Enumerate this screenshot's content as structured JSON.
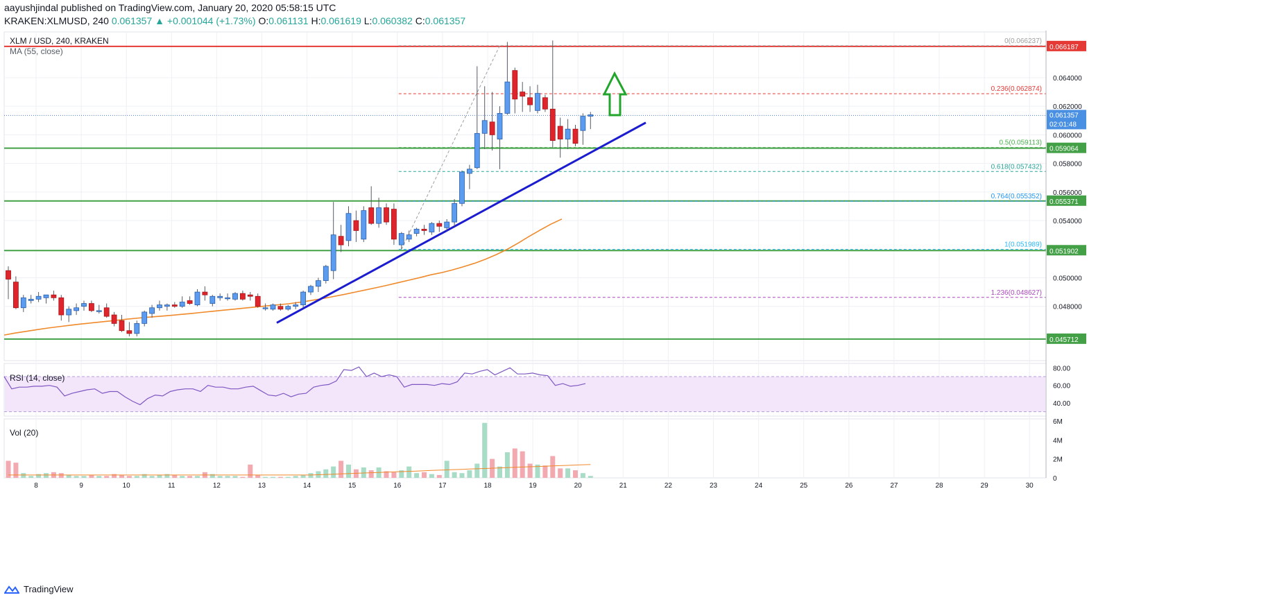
{
  "header": {
    "publisher": "aayushjindal published on TradingView.com, January 20, 2020 05:58:15 UTC",
    "symbol": "KRAKEN:XLMUSD, 240",
    "last": "0.061357",
    "change": "+0.001044 (+1.73%)",
    "open_label": "O:",
    "open": "0.061131",
    "high_label": "H:",
    "high": "0.061619",
    "low_label": "L:",
    "low": "0.060382",
    "close_label": "C:",
    "close": "0.061357"
  },
  "price_pane": {
    "title": "XLM / USD, 240, KRAKEN",
    "indicator": "MA (55, close)",
    "arrow_color": "#22a52b",
    "trendline_color": "#1b1bcf",
    "ma_color": "#f0892a"
  },
  "rsi_pane": {
    "label": "RSI (14, close)",
    "ticks": [
      "80.00",
      "60.00",
      "40.00"
    ]
  },
  "vol_pane": {
    "label": "Vol (20)",
    "ticks": [
      "6M",
      "4M",
      "2M",
      "0"
    ]
  },
  "footer": {
    "brand": "TradingView"
  },
  "chart_data": {
    "type": "candlestick",
    "title": "XLM / USD, 240, KRAKEN",
    "x_labels": [
      "8",
      "9",
      "10",
      "11",
      "12",
      "13",
      "14",
      "15",
      "16",
      "17",
      "18",
      "19",
      "20",
      "21",
      "22",
      "23",
      "24",
      "25",
      "26",
      "27",
      "28",
      "29",
      "30"
    ],
    "y_ticks": [
      "0.064000",
      "0.062000",
      "0.060000",
      "0.058000",
      "0.056000",
      "0.054000",
      "0.050000",
      "0.048000"
    ],
    "ylim": [
      0.0442,
      0.0672
    ],
    "current_price": {
      "value": 0.061357,
      "label": "0.061357",
      "timer": "02:01:48"
    },
    "candles": [
      {
        "o": 0.0505,
        "h": 0.0508,
        "l": 0.0485,
        "c": 0.0499
      },
      {
        "o": 0.0497,
        "h": 0.0501,
        "l": 0.0478,
        "c": 0.0479
      },
      {
        "o": 0.0479,
        "h": 0.0488,
        "l": 0.0476,
        "c": 0.0486
      },
      {
        "o": 0.0484,
        "h": 0.0488,
        "l": 0.0482,
        "c": 0.0485
      },
      {
        "o": 0.0485,
        "h": 0.049,
        "l": 0.0483,
        "c": 0.0487
      },
      {
        "o": 0.0486,
        "h": 0.0488,
        "l": 0.0482,
        "c": 0.0488
      },
      {
        "o": 0.0488,
        "h": 0.0491,
        "l": 0.0484,
        "c": 0.0486
      },
      {
        "o": 0.0486,
        "h": 0.0488,
        "l": 0.047,
        "c": 0.0474
      },
      {
        "o": 0.0474,
        "h": 0.048,
        "l": 0.0469,
        "c": 0.0478
      },
      {
        "o": 0.0477,
        "h": 0.0482,
        "l": 0.0474,
        "c": 0.0479
      },
      {
        "o": 0.048,
        "h": 0.0484,
        "l": 0.0477,
        "c": 0.0482
      },
      {
        "o": 0.0482,
        "h": 0.0484,
        "l": 0.0476,
        "c": 0.0477
      },
      {
        "o": 0.0477,
        "h": 0.0481,
        "l": 0.0475,
        "c": 0.0477
      },
      {
        "o": 0.0479,
        "h": 0.0482,
        "l": 0.0472,
        "c": 0.0473
      },
      {
        "o": 0.0474,
        "h": 0.0476,
        "l": 0.0466,
        "c": 0.0468
      },
      {
        "o": 0.047,
        "h": 0.0474,
        "l": 0.0462,
        "c": 0.0463
      },
      {
        "o": 0.0463,
        "h": 0.0469,
        "l": 0.0459,
        "c": 0.0461
      },
      {
        "o": 0.0461,
        "h": 0.047,
        "l": 0.0459,
        "c": 0.0468
      },
      {
        "o": 0.0468,
        "h": 0.0477,
        "l": 0.0466,
        "c": 0.0476
      },
      {
        "o": 0.0475,
        "h": 0.0481,
        "l": 0.0472,
        "c": 0.0479
      },
      {
        "o": 0.0479,
        "h": 0.0484,
        "l": 0.0477,
        "c": 0.0481
      },
      {
        "o": 0.048,
        "h": 0.0482,
        "l": 0.0477,
        "c": 0.0481
      },
      {
        "o": 0.0481,
        "h": 0.0483,
        "l": 0.0479,
        "c": 0.048
      },
      {
        "o": 0.048,
        "h": 0.0487,
        "l": 0.0479,
        "c": 0.0483
      },
      {
        "o": 0.0484,
        "h": 0.0487,
        "l": 0.0481,
        "c": 0.0482
      },
      {
        "o": 0.0481,
        "h": 0.0492,
        "l": 0.048,
        "c": 0.049
      },
      {
        "o": 0.049,
        "h": 0.0494,
        "l": 0.0484,
        "c": 0.0488
      },
      {
        "o": 0.0482,
        "h": 0.0488,
        "l": 0.048,
        "c": 0.0487
      },
      {
        "o": 0.0486,
        "h": 0.0489,
        "l": 0.0484,
        "c": 0.0487
      },
      {
        "o": 0.0486,
        "h": 0.0489,
        "l": 0.0484,
        "c": 0.0486
      },
      {
        "o": 0.0485,
        "h": 0.049,
        "l": 0.0484,
        "c": 0.0489
      },
      {
        "o": 0.0489,
        "h": 0.0491,
        "l": 0.0484,
        "c": 0.0485
      },
      {
        "o": 0.0488,
        "h": 0.049,
        "l": 0.0484,
        "c": 0.0487
      },
      {
        "o": 0.0487,
        "h": 0.0489,
        "l": 0.0479,
        "c": 0.048
      },
      {
        "o": 0.0479,
        "h": 0.0482,
        "l": 0.0477,
        "c": 0.0479
      },
      {
        "o": 0.0478,
        "h": 0.0482,
        "l": 0.0477,
        "c": 0.0481
      },
      {
        "o": 0.048,
        "h": 0.0482,
        "l": 0.0477,
        "c": 0.0478
      },
      {
        "o": 0.0478,
        "h": 0.0481,
        "l": 0.0477,
        "c": 0.048
      },
      {
        "o": 0.048,
        "h": 0.0483,
        "l": 0.0478,
        "c": 0.0481
      },
      {
        "o": 0.0481,
        "h": 0.0491,
        "l": 0.0479,
        "c": 0.049
      },
      {
        "o": 0.049,
        "h": 0.0495,
        "l": 0.0488,
        "c": 0.0494
      },
      {
        "o": 0.0494,
        "h": 0.05,
        "l": 0.049,
        "c": 0.0498
      },
      {
        "o": 0.0498,
        "h": 0.0509,
        "l": 0.0496,
        "c": 0.0508
      },
      {
        "o": 0.0505,
        "h": 0.0553,
        "l": 0.0499,
        "c": 0.053
      },
      {
        "o": 0.0529,
        "h": 0.0537,
        "l": 0.0518,
        "c": 0.0523
      },
      {
        "o": 0.0526,
        "h": 0.055,
        "l": 0.0522,
        "c": 0.0545
      },
      {
        "o": 0.054,
        "h": 0.0547,
        "l": 0.0525,
        "c": 0.0533
      },
      {
        "o": 0.0527,
        "h": 0.055,
        "l": 0.0525,
        "c": 0.0547
      },
      {
        "o": 0.0549,
        "h": 0.0564,
        "l": 0.0537,
        "c": 0.0538
      },
      {
        "o": 0.0538,
        "h": 0.0556,
        "l": 0.0535,
        "c": 0.0549
      },
      {
        "o": 0.0549,
        "h": 0.0552,
        "l": 0.0537,
        "c": 0.0539
      },
      {
        "o": 0.0548,
        "h": 0.0552,
        "l": 0.0523,
        "c": 0.0527
      },
      {
        "o": 0.0523,
        "h": 0.0532,
        "l": 0.052,
        "c": 0.0531
      },
      {
        "o": 0.0527,
        "h": 0.0533,
        "l": 0.0525,
        "c": 0.053
      },
      {
        "o": 0.0531,
        "h": 0.0535,
        "l": 0.0529,
        "c": 0.0534
      },
      {
        "o": 0.0534,
        "h": 0.0537,
        "l": 0.053,
        "c": 0.0533
      },
      {
        "o": 0.0532,
        "h": 0.0539,
        "l": 0.053,
        "c": 0.0538
      },
      {
        "o": 0.0538,
        "h": 0.054,
        "l": 0.0532,
        "c": 0.0536
      },
      {
        "o": 0.0535,
        "h": 0.0541,
        "l": 0.0533,
        "c": 0.0539
      },
      {
        "o": 0.0539,
        "h": 0.0555,
        "l": 0.0536,
        "c": 0.0552
      },
      {
        "o": 0.0552,
        "h": 0.0575,
        "l": 0.055,
        "c": 0.0574
      },
      {
        "o": 0.0573,
        "h": 0.0579,
        "l": 0.0562,
        "c": 0.0576
      },
      {
        "o": 0.0577,
        "h": 0.0648,
        "l": 0.0576,
        "c": 0.0601
      },
      {
        "o": 0.0601,
        "h": 0.0634,
        "l": 0.059,
        "c": 0.061
      },
      {
        "o": 0.0609,
        "h": 0.063,
        "l": 0.0589,
        "c": 0.06
      },
      {
        "o": 0.0597,
        "h": 0.062,
        "l": 0.0576,
        "c": 0.0615
      },
      {
        "o": 0.0615,
        "h": 0.0665,
        "l": 0.0614,
        "c": 0.0637
      },
      {
        "o": 0.0645,
        "h": 0.0647,
        "l": 0.0615,
        "c": 0.0625
      },
      {
        "o": 0.063,
        "h": 0.0637,
        "l": 0.0616,
        "c": 0.0627
      },
      {
        "o": 0.0626,
        "h": 0.0634,
        "l": 0.0616,
        "c": 0.0621
      },
      {
        "o": 0.0617,
        "h": 0.0635,
        "l": 0.0615,
        "c": 0.0629
      },
      {
        "o": 0.0626,
        "h": 0.0628,
        "l": 0.0616,
        "c": 0.0618
      },
      {
        "o": 0.0618,
        "h": 0.0666,
        "l": 0.0591,
        "c": 0.0596
      },
      {
        "o": 0.0606,
        "h": 0.0612,
        "l": 0.0584,
        "c": 0.0597
      },
      {
        "o": 0.0597,
        "h": 0.0611,
        "l": 0.059,
        "c": 0.0604
      },
      {
        "o": 0.0604,
        "h": 0.0607,
        "l": 0.0592,
        "c": 0.0594
      },
      {
        "o": 0.0603,
        "h": 0.0615,
        "l": 0.0593,
        "c": 0.0613
      },
      {
        "o": 0.0613,
        "h": 0.0616,
        "l": 0.0604,
        "c": 0.0614
      }
    ],
    "ma55": [
      0.04599,
      0.04613,
      0.04625,
      0.04637,
      0.04648,
      0.04658,
      0.04667,
      0.04676,
      0.04684,
      0.04692,
      0.047,
      0.04708,
      0.04716,
      0.04723,
      0.04729,
      0.04735,
      0.04742,
      0.04749,
      0.04757,
      0.04765,
      0.04773,
      0.0478,
      0.04788,
      0.04795,
      0.04803,
      0.0481,
      0.04818,
      0.04828,
      0.0484,
      0.04853,
      0.04867,
      0.04882,
      0.04898,
      0.04914,
      0.0493,
      0.04947,
      0.04965,
      0.04983,
      0.05001,
      0.0502,
      0.05036,
      0.05055,
      0.05077,
      0.05101,
      0.05129,
      0.05162,
      0.05199,
      0.05242,
      0.05289,
      0.05333,
      0.05375,
      0.05411
    ],
    "horizontal_levels": [
      {
        "value": 0.066187,
        "label": "0.066187",
        "color": "#e53935"
      },
      {
        "value": 0.059064,
        "label": "0.059064",
        "color": "#43a047"
      },
      {
        "value": 0.055371,
        "label": "0.055371",
        "color": "#43a047"
      },
      {
        "value": 0.051902,
        "label": "0.051902",
        "color": "#43a047"
      },
      {
        "value": 0.045712,
        "label": "0.045712",
        "color": "#43a047"
      }
    ],
    "fibonacci": [
      {
        "ratio": "0",
        "value": 0.066237,
        "label": "0(0.066237)",
        "color": "#9e9e9e"
      },
      {
        "ratio": "0.236",
        "value": 0.062874,
        "label": "0.236(0.062874)",
        "color": "#e53935"
      },
      {
        "ratio": "0.5",
        "value": 0.059113,
        "label": "0.5(0.059113)",
        "color": "#4caf50"
      },
      {
        "ratio": "0.618",
        "value": 0.057432,
        "label": "0.618(0.057432)",
        "color": "#26a69a"
      },
      {
        "ratio": "0.764",
        "value": 0.055352,
        "label": "0.764(0.055352)",
        "color": "#2196f3"
      },
      {
        "ratio": "1",
        "value": 0.051989,
        "label": "1(0.051989)",
        "color": "#29b6f6"
      },
      {
        "ratio": "1.236",
        "value": 0.048627,
        "label": "1.236(0.048627)",
        "color": "#ab47bc"
      }
    ],
    "rsi": [
      70,
      56,
      58,
      58,
      59,
      59,
      60,
      58,
      48,
      51,
      53,
      55,
      56,
      51,
      53,
      53,
      47,
      42,
      38,
      45,
      49,
      48,
      53,
      55,
      56,
      56,
      53,
      60,
      58,
      58,
      56,
      56,
      58,
      59,
      54,
      49,
      48,
      51,
      47,
      50,
      51,
      58,
      60,
      61,
      65,
      78,
      77,
      81,
      70,
      74,
      70,
      72,
      70,
      58,
      61,
      61,
      61,
      60,
      62,
      61,
      64,
      74,
      73,
      76,
      78,
      72,
      76,
      80,
      73,
      73,
      74,
      72,
      71,
      60,
      62,
      59,
      60,
      62
    ]
  }
}
